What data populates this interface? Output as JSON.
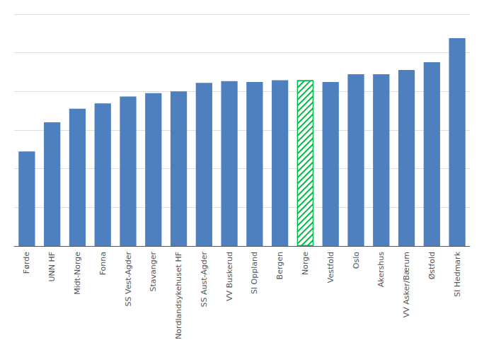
{
  "chart_data": {
    "type": "bar",
    "categories": [
      "Førde",
      "UNN HF",
      "Midt-Norge",
      "Fonna",
      "SS Vest-Agder",
      "Stavanger",
      "Nordlandsykehuset HF",
      "SS Aust-Agder",
      "VV Buskerud",
      "SI Oppland",
      "Bergen",
      "Norge",
      "Vestfold",
      "Oslo",
      "Akershus",
      "VV Asker/Bærum",
      "Østfold",
      "SI Hedmark"
    ],
    "values": [
      0.55,
      0.72,
      0.8,
      0.83,
      0.87,
      0.89,
      0.9,
      0.95,
      0.96,
      0.955,
      0.965,
      0.965,
      0.955,
      1.0,
      1.0,
      1.025,
      1.07,
      1.21
    ],
    "color": "#4E7FBE",
    "colors": [
      "#4E7FBE",
      "#4E7FBE",
      "#4E7FBE",
      "#4E7FBE",
      "#4E7FBE",
      "#4E7FBE",
      "#4E7FBE",
      "#4E7FBE",
      "#4E7FBE",
      "#4E7FBE",
      "#4E7FBE",
      "#00BB44",
      "#4E7FBE",
      "#4E7FBE",
      "#4E7FBE",
      "#4E7FBE",
      "#4E7FBE",
      "#4E7FBE"
    ],
    "ylim": [
      0,
      1.35
    ],
    "yticks": [
      0,
      0.225,
      0.45,
      0.675,
      0.9,
      1.125,
      1.35
    ],
    "grid": true,
    "tick_labels": "x"
  }
}
